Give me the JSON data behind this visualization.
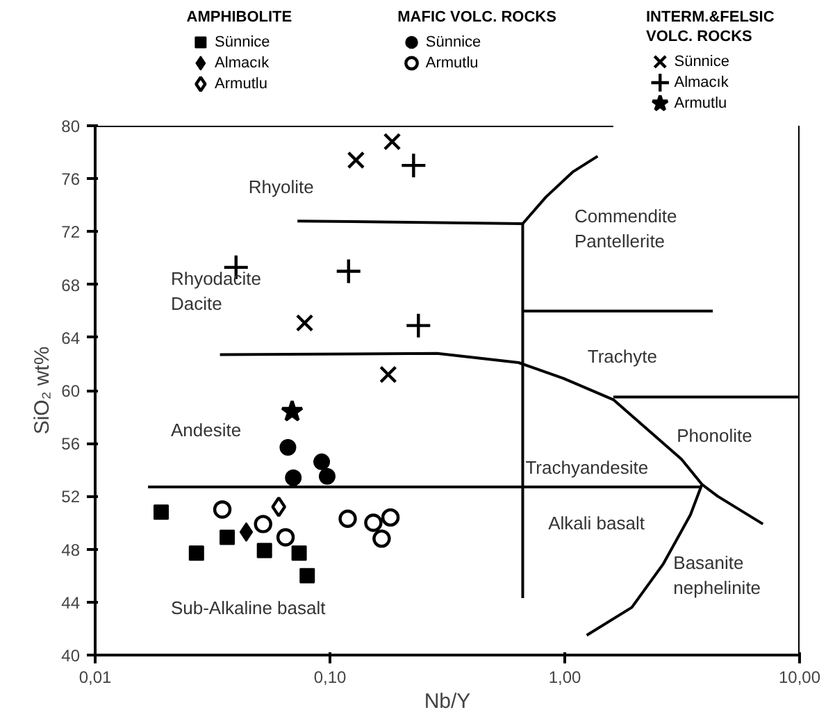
{
  "chart_data": {
    "type": "scatter",
    "xlabel": "Nb/Y",
    "ylabel": "SiO₂ wt%",
    "legend_title": [
      "AMPHIBOLITE",
      "MAFIC VOLC. ROCKS",
      "INTERM.&FELSIC\nVOLC. ROCKS"
    ],
    "log": "x",
    "grid": false,
    "legend": "top",
    "xlim": [
      0.01,
      10
    ],
    "xticks": [
      {
        "value": 0.01,
        "label": "0,01"
      },
      {
        "value": 0.1,
        "label": "0,10"
      },
      {
        "value": 1,
        "label": "1,00"
      },
      {
        "value": 10,
        "label": "10,00"
      }
    ],
    "ylim": [
      40,
      80
    ],
    "yticks": [
      40,
      44,
      48,
      52,
      56,
      60,
      64,
      68,
      72,
      76,
      80
    ],
    "series": [
      {
        "name": "Sünnice",
        "marker": "square",
        "color": "#000000",
        "x": [
          0.0191,
          0.0365,
          0.027,
          0.0526,
          0.0739,
          0.08
        ],
        "values": [
          50.8,
          48.9,
          47.7,
          47.9,
          47.7,
          46.0
        ]
      },
      {
        "name": "Almacık",
        "marker": "diamond",
        "color": "#000000",
        "x": [
          0.044
        ],
        "values": [
          49.3
        ]
      },
      {
        "name": "Armutlu",
        "marker": "diamond_open",
        "color": "#000000",
        "x": [
          0.0605
        ],
        "values": [
          51.2
        ]
      },
      {
        "name": "Sünnice",
        "marker": "circle",
        "color": "#000000",
        "x": [
          0.0662,
          0.0698,
          0.0922,
          0.0973
        ],
        "values": [
          55.7,
          53.4,
          54.6,
          53.5
        ]
      },
      {
        "name": "Armutlu",
        "marker": "circle_open",
        "color": "#000000",
        "x": [
          0.0348,
          0.0519,
          0.0647,
          0.119,
          0.153,
          0.181,
          0.166
        ],
        "values": [
          51.0,
          49.9,
          48.9,
          50.3,
          50.0,
          50.4,
          48.8
        ]
      },
      {
        "name": "Sünnice",
        "marker": "x",
        "color": "#000000",
        "x": [
          0.129,
          0.184,
          0.078,
          0.177
        ],
        "values": [
          77.4,
          78.8,
          65.1,
          61.2
        ]
      },
      {
        "name": "Almacık",
        "marker": "cross",
        "color": "#000000",
        "x": [
          0.227,
          0.0398,
          0.12,
          0.238
        ],
        "values": [
          77.0,
          69.3,
          69.0,
          64.9
        ]
      },
      {
        "name": "Armutlu",
        "marker": "star",
        "color": "#000000",
        "x": [
          0.069
        ],
        "values": [
          58.4
        ]
      },
      {
        "type": "line",
        "color": "#000000",
        "x": [
          0.01,
          1.61
        ],
        "values": [
          80,
          80
        ]
      },
      {
        "type": "line",
        "color": "#000000",
        "x": [
          10,
          10
        ],
        "values": [
          40,
          80
        ]
      },
      {
        "type": "line",
        "color": "#000000",
        "x": [
          0.0727,
          0.662,
          0.83,
          1.08,
          1.38
        ],
        "values": [
          72.8,
          72.6,
          74.6,
          76.5,
          77.7
        ]
      },
      {
        "type": "line",
        "color": "#000000",
        "x": [
          0.662,
          0.662
        ],
        "values": [
          72.6,
          44.3
        ]
      },
      {
        "type": "line",
        "color": "#000000",
        "x": [
          0.662,
          4.27
        ],
        "values": [
          66.0,
          66.0
        ]
      },
      {
        "type": "line",
        "color": "#000000",
        "x": [
          0.034,
          0.286,
          0.636,
          0.99,
          1.61,
          2.3,
          3.14,
          3.84,
          4.48,
          6.98
        ],
        "values": [
          62.7,
          62.8,
          62.1,
          60.9,
          59.3,
          56.9,
          54.8,
          52.9,
          52.0,
          49.9
        ]
      },
      {
        "type": "line",
        "color": "#000000",
        "x": [
          1.61,
          10
        ],
        "values": [
          59.5,
          59.5
        ]
      },
      {
        "type": "line",
        "color": "#000000",
        "x": [
          0.0168,
          3.84
        ],
        "values": [
          52.7,
          52.7
        ]
      },
      {
        "type": "line",
        "color": "#000000",
        "x": [
          3.84,
          3.43,
          2.63,
          1.93,
          1.24
        ],
        "values": [
          52.9,
          50.6,
          46.9,
          43.6,
          41.5
        ]
      }
    ],
    "annotations": [
      "Rhyolite",
      "Commendite\nPantellerite",
      "Rhyodacite\nDacite",
      "Trachyte",
      "Andesite",
      "Phonolite",
      "Trachyandesite",
      "Alkali basalt",
      "Basanite\nnephelinite",
      "Sub-Alkaline basalt"
    ]
  }
}
